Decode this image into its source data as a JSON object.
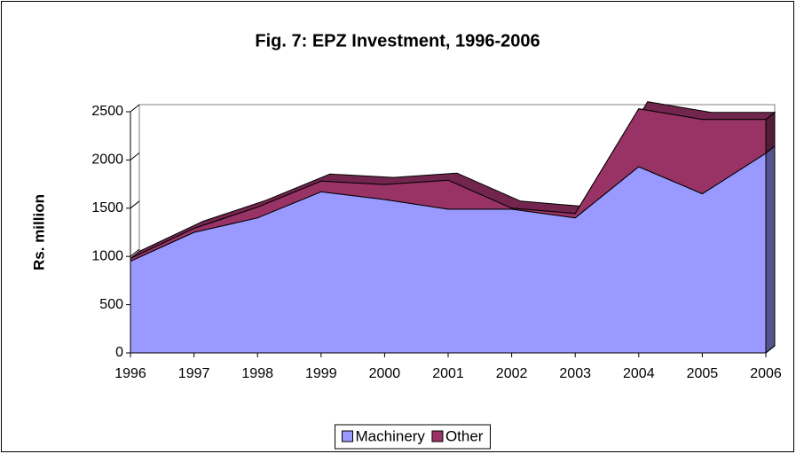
{
  "chart_data": {
    "type": "stacked_area",
    "title": "Fig. 7: EPZ Investment, 1996-2006",
    "y_label": "Rs. million",
    "categories": [
      "1996",
      "1997",
      "1998",
      "1999",
      "2000",
      "2001",
      "2002",
      "2003",
      "2004",
      "2005",
      "2006"
    ],
    "series": [
      {
        "name": "Machinery",
        "color": "#9999ff",
        "values": [
          950,
          1250,
          1400,
          1670,
          1590,
          1490,
          1490,
          1400,
          1930,
          1650,
          2070
        ]
      },
      {
        "name": "Other",
        "color": "#993366",
        "values": [
          30,
          40,
          110,
          110,
          155,
          300,
          10,
          45,
          600,
          770,
          350
        ]
      }
    ],
    "ylim": [
      0,
      2500
    ],
    "yticks": [
      0,
      500,
      1000,
      1500,
      2000,
      2500
    ],
    "grid": false,
    "legend": "bottom"
  }
}
